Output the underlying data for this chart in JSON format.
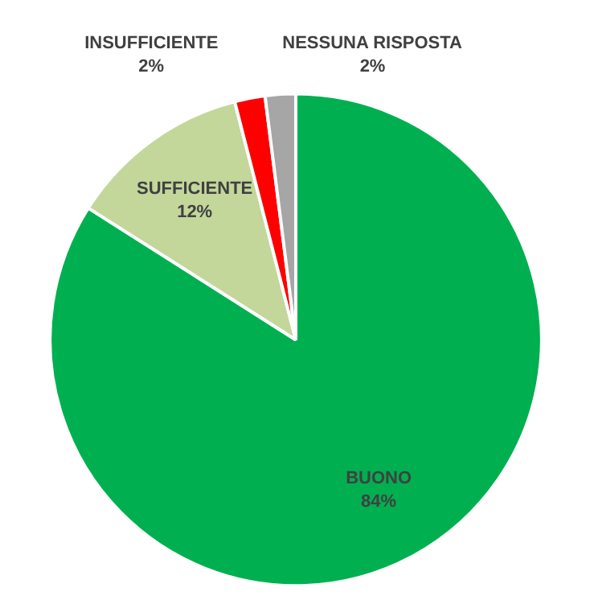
{
  "chart_data": {
    "type": "pie",
    "categories": [
      "BUONO",
      "SUFFICIENTE",
      "INSUFFICIENTE",
      "NESSUNA RISPOSTA"
    ],
    "values": [
      84,
      12,
      2,
      2
    ],
    "value_labels": [
      "84%",
      "12%",
      "2%",
      "2%"
    ],
    "colors": [
      "#00b050",
      "#c4d79b",
      "#ff0000",
      "#a6a6a6"
    ]
  }
}
